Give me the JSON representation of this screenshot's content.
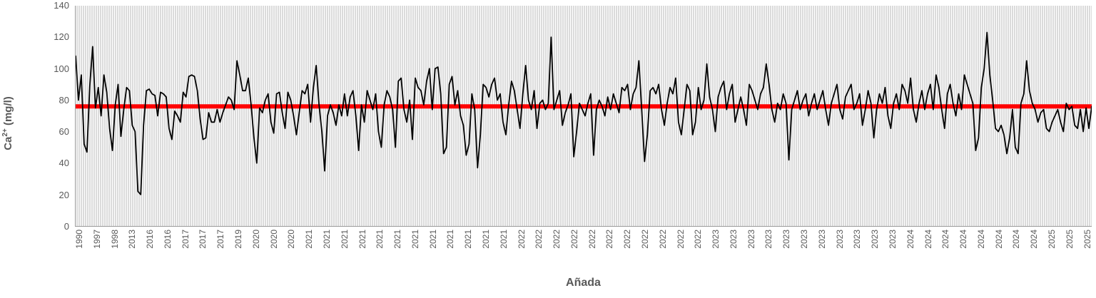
{
  "chart_data": {
    "type": "line",
    "title": "",
    "xlabel": "Añada",
    "ylabel": "Ca2+ (mg/l)",
    "ylabel_parts": {
      "base": "Ca",
      "sup": "2+",
      "rest": " (mg/l)"
    },
    "ylim": [
      0,
      140
    ],
    "yticks": [
      0,
      20,
      40,
      60,
      80,
      100,
      120,
      140
    ],
    "grid": "dense-vertical-gridlines",
    "legend": "none",
    "x_tick_labels": [
      "1990",
      "1997",
      "1998",
      "2013",
      "2016",
      "2016",
      "2017",
      "2017",
      "2017",
      "2019",
      "2020",
      "2020",
      "2020",
      "2021",
      "2021",
      "2021",
      "2021",
      "2021",
      "2021",
      "2021",
      "2021",
      "2021",
      "2021",
      "2021",
      "2021",
      "2022",
      "2022",
      "2022",
      "2022",
      "2022",
      "2022",
      "2022",
      "2022",
      "2022",
      "2022",
      "2022",
      "2023",
      "2023",
      "2023",
      "2023",
      "2023",
      "2023",
      "2023",
      "2023",
      "2023",
      "2023",
      "2023",
      "2024",
      "2024",
      "2024",
      "2024",
      "2024",
      "2024",
      "2024",
      "2024",
      "2025",
      "2025",
      "2025"
    ],
    "series": [
      {
        "name": "Ca2+ (mg/l)",
        "color": "#000000",
        "values": [
          108,
          80,
          96,
          52,
          47,
          89,
          114,
          75,
          88,
          70,
          96,
          85,
          62,
          48,
          77,
          90,
          57,
          74,
          88,
          86,
          64,
          60,
          22,
          20,
          64,
          86,
          87,
          84,
          83,
          70,
          85,
          84,
          82,
          62,
          55,
          73,
          70,
          66,
          85,
          82,
          95,
          96,
          95,
          86,
          68,
          55,
          56,
          72,
          66,
          66,
          74,
          66,
          72,
          77,
          82,
          80,
          74,
          105,
          96,
          86,
          86,
          94,
          77,
          56,
          40,
          75,
          72,
          80,
          84,
          66,
          59,
          84,
          85,
          72,
          62,
          85,
          80,
          70,
          58,
          72,
          86,
          84,
          90,
          66,
          88,
          102,
          77,
          60,
          35,
          70,
          77,
          72,
          64,
          77,
          70,
          84,
          70,
          82,
          86,
          70,
          48,
          77,
          66,
          86,
          80,
          74,
          84,
          60,
          50,
          77,
          86,
          82,
          74,
          50,
          92,
          94,
          74,
          66,
          80,
          55,
          94,
          88,
          86,
          77,
          92,
          100,
          74,
          100,
          101,
          84,
          46,
          50,
          90,
          95,
          77,
          86,
          70,
          64,
          45,
          52,
          84,
          74,
          37,
          58,
          90,
          88,
          82,
          90,
          94,
          80,
          84,
          66,
          58,
          77,
          92,
          86,
          74,
          62,
          84,
          102,
          80,
          74,
          86,
          62,
          78,
          80,
          74,
          78,
          120,
          74,
          80,
          86,
          64,
          72,
          77,
          84,
          44,
          60,
          78,
          74,
          70,
          78,
          84,
          45,
          74,
          80,
          76,
          70,
          82,
          74,
          84,
          78,
          72,
          88,
          86,
          90,
          74,
          84,
          88,
          105,
          74,
          41,
          58,
          86,
          88,
          84,
          90,
          74,
          64,
          78,
          88,
          84,
          94,
          66,
          58,
          74,
          90,
          86,
          58,
          66,
          88,
          74,
          80,
          103,
          82,
          74,
          60,
          82,
          88,
          92,
          74,
          84,
          90,
          66,
          74,
          82,
          74,
          64,
          90,
          86,
          80,
          74,
          84,
          88,
          103,
          90,
          74,
          66,
          78,
          74,
          84,
          78,
          42,
          74,
          80,
          86,
          74,
          80,
          84,
          70,
          78,
          84,
          74,
          80,
          86,
          74,
          64,
          78,
          84,
          90,
          74,
          68,
          82,
          86,
          90,
          74,
          78,
          84,
          64,
          74,
          86,
          78,
          56,
          74,
          84,
          78,
          88,
          70,
          62,
          78,
          84,
          74,
          90,
          86,
          78,
          94,
          74,
          66,
          78,
          86,
          74,
          84,
          90,
          74,
          96,
          88,
          74,
          62,
          84,
          90,
          78,
          70,
          84,
          74,
          96,
          90,
          84,
          78,
          48,
          56,
          88,
          100,
          123,
          96,
          80,
          62,
          60,
          64,
          58,
          46,
          56,
          74,
          50,
          46,
          78,
          84,
          105,
          86,
          78,
          74,
          66,
          72,
          74,
          62,
          60,
          66,
          70,
          74,
          66,
          60,
          78,
          74,
          76,
          64,
          62,
          74,
          60,
          75,
          62,
          76
        ]
      }
    ],
    "reference_line": {
      "value": 76,
      "color": "#FF0000",
      "thickness": 6
    }
  },
  "colors": {
    "series": "#000000",
    "reference": "#FF0000",
    "axis_text": "#595959",
    "plot_bg": "#dbdbdb",
    "gridline": "#ffffff",
    "axis_line": "#9a9a9a"
  }
}
